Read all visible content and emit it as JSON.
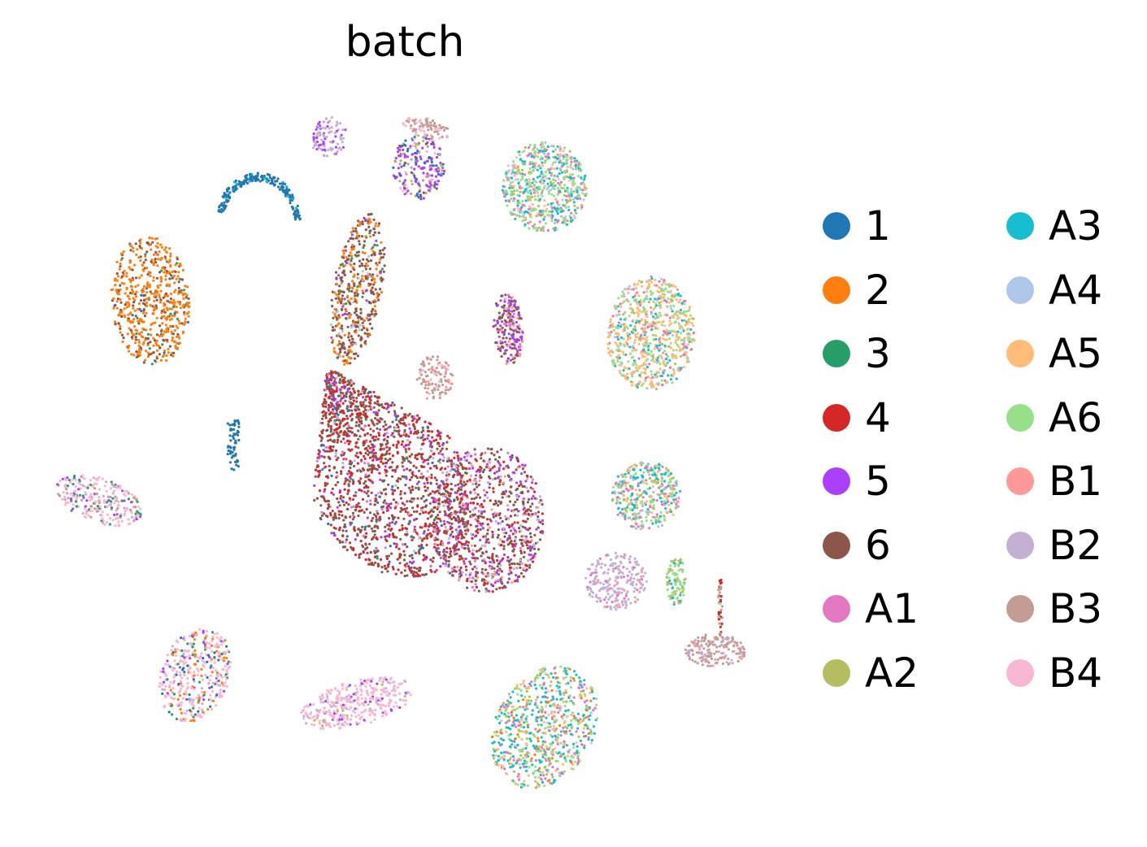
{
  "chart_data": {
    "type": "scatter",
    "title": "batch",
    "xlabel": "",
    "ylabel": "",
    "axes_visible": false,
    "grid": false,
    "legend_position": "right",
    "legend_columns": 2,
    "series": [
      {
        "name": "1",
        "color": "#1f77b4"
      },
      {
        "name": "2",
        "color": "#ff7f0e"
      },
      {
        "name": "3",
        "color": "#279e68"
      },
      {
        "name": "4",
        "color": "#d62728"
      },
      {
        "name": "5",
        "color": "#aa40fc"
      },
      {
        "name": "6",
        "color": "#8c564b"
      },
      {
        "name": "A1",
        "color": "#e377c2"
      },
      {
        "name": "A2",
        "color": "#b5bd61"
      },
      {
        "name": "A3",
        "color": "#17becf"
      },
      {
        "name": "A4",
        "color": "#aec7e8"
      },
      {
        "name": "A5",
        "color": "#ffbb78"
      },
      {
        "name": "A6",
        "color": "#98df8a"
      },
      {
        "name": "B1",
        "color": "#ff9896"
      },
      {
        "name": "B2",
        "color": "#c5b0d5"
      },
      {
        "name": "B3",
        "color": "#c49c94"
      },
      {
        "name": "B4",
        "color": "#f7b6d2"
      }
    ]
  }
}
